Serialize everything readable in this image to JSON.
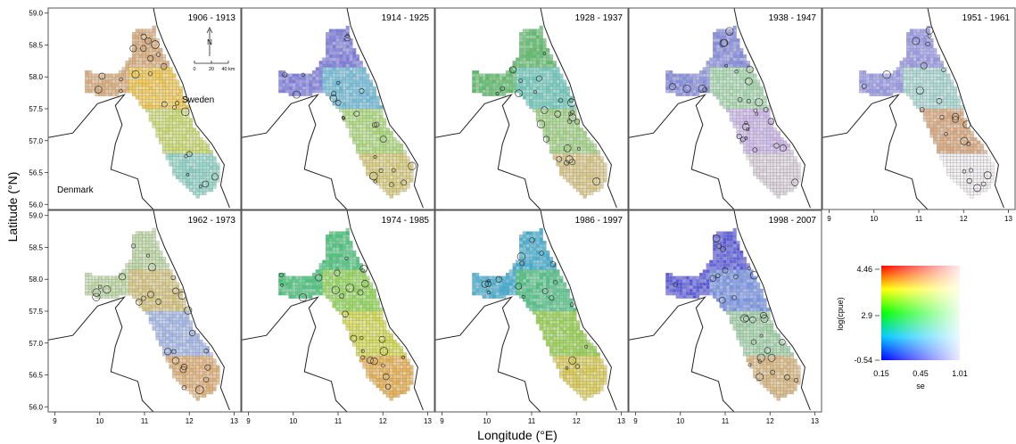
{
  "figure": {
    "y_axis_label": "Latitude (°N)",
    "x_axis_label": "Longitude (°E)",
    "lat_ticks": [
      "59.0",
      "58.5",
      "58.0",
      "57.5",
      "57.0",
      "56.5",
      "56.0"
    ],
    "lon_ticks": [
      "9",
      "10",
      "11",
      "12",
      "13"
    ],
    "lat_range": [
      55.92,
      59.08
    ],
    "lon_range": [
      8.85,
      13.15
    ],
    "land_labels": {
      "sweden": "Sweden",
      "denmark": "Denmark"
    },
    "north_arrow": "N",
    "scale_bar": [
      "0",
      "20",
      "40 km"
    ],
    "colors": {
      "grid": "#9a9a9a",
      "coast": "#222222",
      "frame": "#555555"
    }
  },
  "panels": [
    {
      "label": "1906 - 1913",
      "fill": [
        "#d9a56b",
        "#f2c33a",
        "#c6d860",
        "#7fd0c0",
        "#9a9ae0"
      ]
    },
    {
      "label": "1914 - 1925",
      "fill": [
        "#6f6fe0",
        "#5fb7d8",
        "#a4d86c",
        "#d6c86a",
        "#b0c0e0"
      ]
    },
    {
      "label": "1928 - 1937",
      "fill": [
        "#4bb85a",
        "#5ec7b8",
        "#9ad27a",
        "#d8c37a",
        "#c8b090"
      ]
    },
    {
      "label": "1938 - 1947",
      "fill": [
        "#7a82e0",
        "#9fd6a8",
        "#c8b0e8",
        "#d8cfd8",
        "#e8e0e8"
      ]
    },
    {
      "label": "1951 - 1961",
      "fill": [
        "#8c8ce6",
        "#a0d6d0",
        "#d8a070",
        "#f0ecef",
        "#ffffff"
      ]
    },
    {
      "label": "1962 - 1973",
      "fill": [
        "#b7d59a",
        "#d4c070",
        "#9ab0e8",
        "#e0a868",
        "#e8d0b0"
      ]
    },
    {
      "label": "1974 - 1985",
      "fill": [
        "#2fc06a",
        "#8ad64a",
        "#d0d83a",
        "#e8a83a",
        "#4c7ce6"
      ]
    },
    {
      "label": "1986 - 1997",
      "fill": [
        "#2da8d0",
        "#3cc07a",
        "#8fd040",
        "#d8c840",
        "#3a5ae8"
      ]
    },
    {
      "label": "1998 - 2007",
      "fill": [
        "#4a4ae0",
        "#6a8ae8",
        "#98d0a0",
        "#d8b070",
        "#e0c8e8"
      ]
    }
  ],
  "legend": {
    "ylabel": "log(cpue)",
    "xlabel": "se",
    "y_ticks": [
      "4.46",
      "2.9",
      "-0.54"
    ],
    "x_ticks": [
      "0.15",
      "0.45",
      "1.01"
    ]
  }
}
